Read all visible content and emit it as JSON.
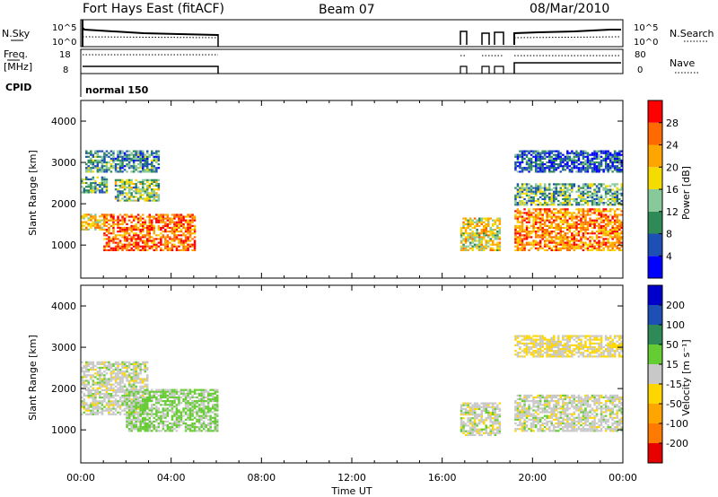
{
  "header": {
    "station": "Fort Hays East (fitACF)",
    "beam": "Beam 07",
    "date": "08/Mar/2010"
  },
  "top_panels": {
    "nsky_label": "N.Sky",
    "nsky_ticks": [
      "10^5",
      "10^0"
    ],
    "nsearch_label": "N.Search",
    "nsearch_ticks": [
      "10^5",
      "10^0"
    ],
    "freq_label": "Freq.",
    "freq_unit": "[MHz]",
    "freq_ticks": [
      "18",
      "8"
    ],
    "nave_label": "Nave",
    "nave_ticks": [
      "80",
      "0"
    ],
    "cpid_label": "CPID",
    "cpid_value": "normal 150"
  },
  "colors": {
    "power": [
      "#0000ff",
      "#1e4fb4",
      "#2e8b57",
      "#88c99a",
      "#f5dc00",
      "#ffa500",
      "#ff6a00",
      "#ff0000"
    ],
    "velocity": [
      "#e60000",
      "#ff7a00",
      "#ffa500",
      "#ffd700",
      "#c8c8c8",
      "#66cc33",
      "#2e8b57",
      "#1e4fb4",
      "#0000cc"
    ]
  },
  "chart_data": [
    {
      "type": "heatmap",
      "panel": "power",
      "ylabel": "Slant Range [km]",
      "yticks": [
        "1000",
        "2000",
        "3000",
        "4000"
      ],
      "ylim": [
        200,
        4500
      ],
      "colorbar_label": "Power [dB]",
      "colorbar_ticks": [
        "28",
        "24",
        "20",
        "16",
        "12",
        "8",
        "4"
      ],
      "colorbar_range": [
        0,
        32
      ],
      "xlim_hours": [
        0,
        24
      ],
      "scatter_regions": [
        {
          "t0": 0.0,
          "t1": 1.2,
          "r0": 2300,
          "r1": 2700,
          "level": 12
        },
        {
          "t0": 0.0,
          "t1": 1.0,
          "r0": 1400,
          "r1": 1800,
          "level": 20
        },
        {
          "t0": 1.0,
          "t1": 5.0,
          "r0": 900,
          "r1": 1800,
          "level": 26
        },
        {
          "t0": 1.5,
          "t1": 3.5,
          "r0": 2100,
          "r1": 2600,
          "level": 14
        },
        {
          "t0": 0.2,
          "t1": 3.5,
          "r0": 2800,
          "r1": 3300,
          "level": 10
        },
        {
          "t0": 16.8,
          "t1": 18.6,
          "r0": 900,
          "r1": 1700,
          "level": 18
        },
        {
          "t0": 19.2,
          "t1": 24.0,
          "r0": 900,
          "r1": 1900,
          "level": 24
        },
        {
          "t0": 19.2,
          "t1": 24.0,
          "r0": 2000,
          "r1": 2500,
          "level": 12
        },
        {
          "t0": 19.2,
          "t1": 24.0,
          "r0": 2800,
          "r1": 3300,
          "level": 6
        }
      ]
    },
    {
      "type": "heatmap",
      "panel": "velocity",
      "ylabel": "Slant Range [km]",
      "yticks": [
        "1000",
        "2000",
        "3000",
        "4000"
      ],
      "ylim": [
        200,
        4500
      ],
      "colorbar_label": "Velocity [m s⁻¹]",
      "colorbar_ticks": [
        "200",
        "100",
        "50",
        "15",
        "-15",
        "-50",
        "-100",
        "-200"
      ],
      "colorbar_range": [
        -250,
        250
      ],
      "xlabel": "Time UT",
      "xticks": [
        "00:00",
        "04:00",
        "08:00",
        "12:00",
        "16:00",
        "20:00",
        "00:00"
      ],
      "xlim_hours": [
        0,
        24
      ],
      "scatter_regions": [
        {
          "t0": 0.0,
          "t1": 3.0,
          "r0": 1400,
          "r1": 2700,
          "level": 0
        },
        {
          "t0": 2.0,
          "t1": 6.0,
          "r0": 1000,
          "r1": 2000,
          "level": 40
        },
        {
          "t0": 16.8,
          "t1": 18.6,
          "r0": 900,
          "r1": 1700,
          "level": 0
        },
        {
          "t0": 19.2,
          "t1": 24.0,
          "r0": 1000,
          "r1": 1900,
          "level": 0
        },
        {
          "t0": 19.2,
          "t1": 24.0,
          "r0": 2800,
          "r1": 3300,
          "level": -30
        }
      ]
    }
  ]
}
